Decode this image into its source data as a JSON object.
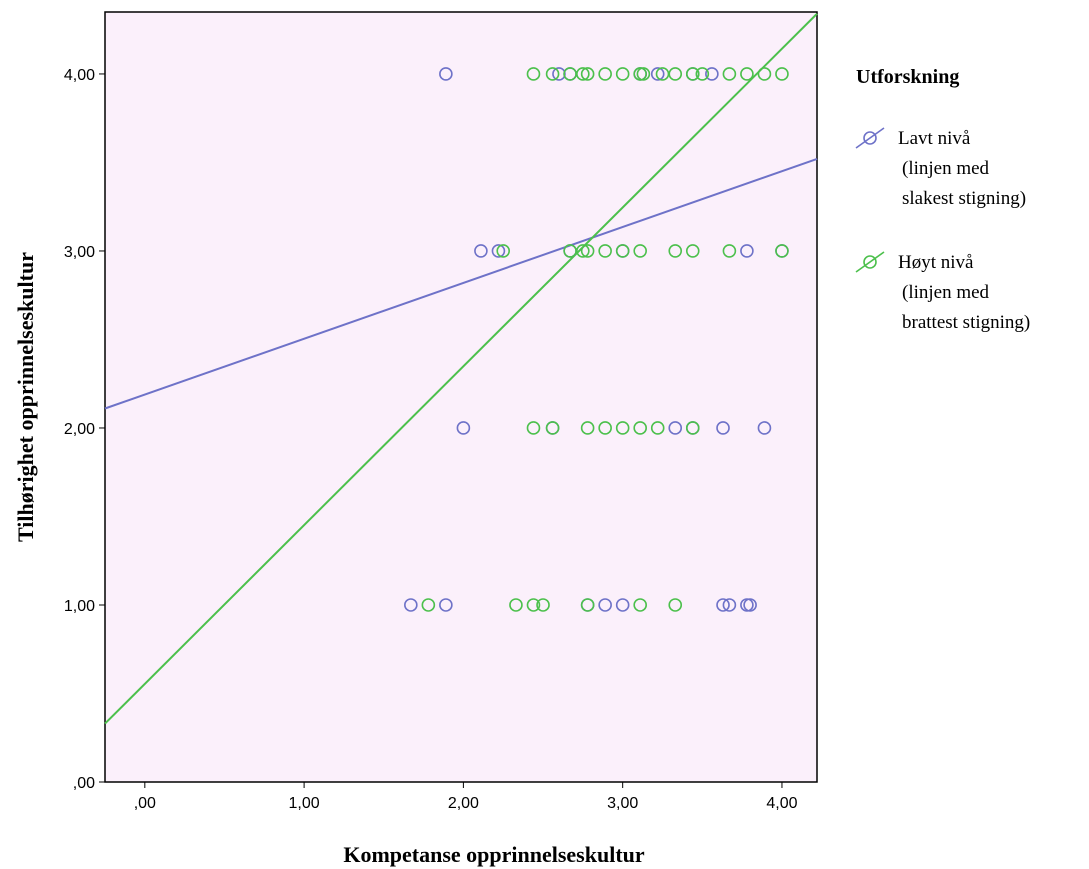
{
  "colors": {
    "background": "#ffffff",
    "plot_background": "#fbf0fb",
    "axis": "#000000",
    "lavt": "#6e72c8",
    "hoyt": "#4cc04c"
  },
  "chart_data": {
    "type": "scatter",
    "title": "",
    "xlabel": "Kompetanse opprinnelseskultur",
    "ylabel": "Tilhørighet opprinnelseskultur",
    "xlim": [
      -0.25,
      4.22
    ],
    "ylim": [
      0,
      4.35
    ],
    "xticks": [
      0,
      1,
      2,
      3,
      4
    ],
    "xtick_labels": [
      ",00",
      "1,00",
      "2,00",
      "3,00",
      "4,00"
    ],
    "yticks": [
      0,
      1,
      2,
      3,
      4
    ],
    "ytick_labels": [
      ",00",
      "1,00",
      "2,00",
      "3,00",
      "4,00"
    ],
    "grid": false,
    "legend_position": "right",
    "legend_title": "Utforskning",
    "series": [
      {
        "name": "Lavt nivå",
        "legend_lines": [
          "Lavt nivå",
          "(linjen med",
          "slakest stigning)"
        ],
        "color": "#6e72c8",
        "marker": "open-circle",
        "points": [
          [
            1.89,
            4
          ],
          [
            2.6,
            4
          ],
          [
            2.67,
            4
          ],
          [
            3.11,
            4
          ],
          [
            3.22,
            4
          ],
          [
            3.44,
            4
          ],
          [
            3.56,
            4
          ],
          [
            2.11,
            3
          ],
          [
            2.22,
            3
          ],
          [
            2.67,
            3
          ],
          [
            3.0,
            3
          ],
          [
            3.78,
            3
          ],
          [
            4.0,
            3
          ],
          [
            2.0,
            2
          ],
          [
            2.56,
            2
          ],
          [
            3.33,
            2
          ],
          [
            3.44,
            2
          ],
          [
            3.63,
            2
          ],
          [
            3.89,
            2
          ],
          [
            1.67,
            1
          ],
          [
            1.89,
            1
          ],
          [
            2.78,
            1
          ],
          [
            2.89,
            1
          ],
          [
            3.0,
            1
          ],
          [
            3.63,
            1
          ],
          [
            3.67,
            1
          ],
          [
            3.78,
            1
          ],
          [
            3.8,
            1
          ]
        ],
        "fit_line": {
          "x": [
            -0.25,
            4.22
          ],
          "y": [
            2.11,
            3.52
          ]
        }
      },
      {
        "name": "Høyt nivå",
        "legend_lines": [
          "Høyt nivå",
          "(linjen med",
          "brattest stigning)"
        ],
        "color": "#4cc04c",
        "marker": "open-circle",
        "points": [
          [
            2.44,
            4
          ],
          [
            2.56,
            4
          ],
          [
            2.67,
            4
          ],
          [
            2.75,
            4
          ],
          [
            2.78,
            4
          ],
          [
            2.89,
            4
          ],
          [
            3.0,
            4
          ],
          [
            3.11,
            4
          ],
          [
            3.13,
            4
          ],
          [
            3.25,
            4
          ],
          [
            3.33,
            4
          ],
          [
            3.44,
            4
          ],
          [
            3.5,
            4
          ],
          [
            3.67,
            4
          ],
          [
            3.78,
            4
          ],
          [
            3.89,
            4
          ],
          [
            4.0,
            4
          ],
          [
            2.25,
            3
          ],
          [
            2.67,
            3
          ],
          [
            2.75,
            3
          ],
          [
            2.78,
            3
          ],
          [
            2.89,
            3
          ],
          [
            3.0,
            3
          ],
          [
            3.11,
            3
          ],
          [
            3.33,
            3
          ],
          [
            3.44,
            3
          ],
          [
            3.67,
            3
          ],
          [
            4.0,
            3
          ],
          [
            2.44,
            2
          ],
          [
            2.56,
            2
          ],
          [
            2.78,
            2
          ],
          [
            2.89,
            2
          ],
          [
            3.0,
            2
          ],
          [
            3.11,
            2
          ],
          [
            3.22,
            2
          ],
          [
            3.44,
            2
          ],
          [
            1.78,
            1
          ],
          [
            2.33,
            1
          ],
          [
            2.44,
            1
          ],
          [
            2.5,
            1
          ],
          [
            2.78,
            1
          ],
          [
            3.11,
            1
          ],
          [
            3.33,
            1
          ]
        ],
        "fit_line": {
          "x": [
            -0.25,
            4.22
          ],
          "y": [
            0.33,
            4.34
          ]
        }
      }
    ]
  }
}
